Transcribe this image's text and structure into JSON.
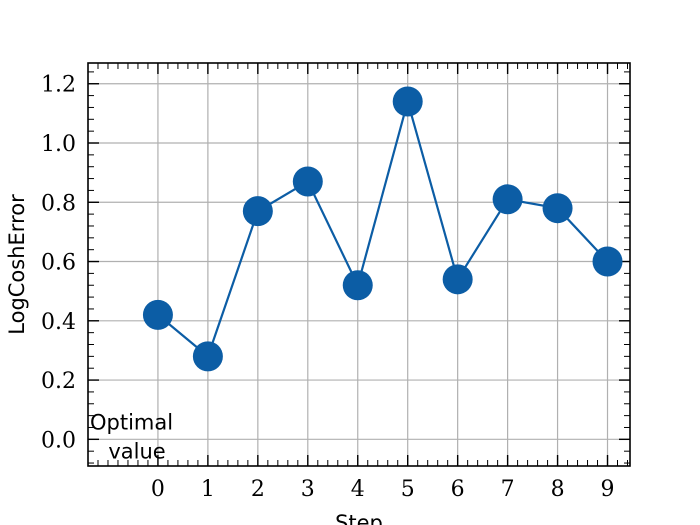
{
  "chart_data": {
    "type": "line",
    "xlabel": "Step",
    "ylabel": "LogCoshError",
    "x": [
      0,
      1,
      2,
      3,
      4,
      5,
      6,
      7,
      8,
      9
    ],
    "series": [
      {
        "values": [
          0.42,
          0.28,
          0.77,
          0.87,
          0.52,
          1.14,
          0.54,
          0.81,
          0.78,
          0.6
        ]
      }
    ],
    "xlim": [
      -1.4,
      9.45
    ],
    "ylim": [
      -0.09,
      1.27
    ],
    "xticks": [
      "0",
      "1",
      "2",
      "3",
      "4",
      "5",
      "6",
      "7",
      "8",
      "9"
    ],
    "yticks": [
      "0.0",
      "0.2",
      "0.4",
      "0.6",
      "0.8",
      "1.0",
      "1.2"
    ],
    "grid": true,
    "annotation": {
      "line1": "Optimal",
      "line2": "value",
      "x": -1.4,
      "y": 0.0
    },
    "colors": {
      "series": "#0c5da5",
      "grid": "#b0b0b0",
      "axis": "#000000"
    }
  }
}
